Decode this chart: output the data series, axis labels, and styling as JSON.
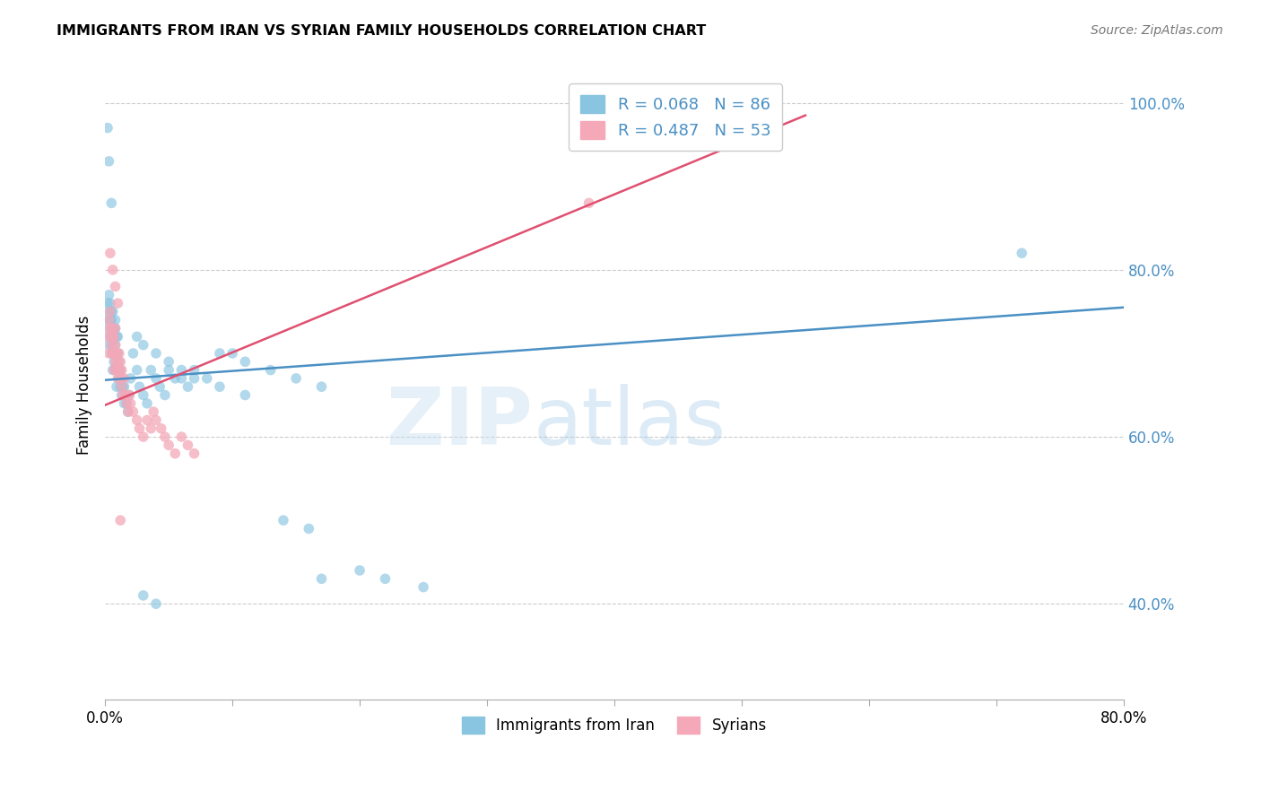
{
  "title": "IMMIGRANTS FROM IRAN VS SYRIAN FAMILY HOUSEHOLDS CORRELATION CHART",
  "source": "Source: ZipAtlas.com",
  "ylabel": "Family Households",
  "xlim": [
    0.0,
    0.8
  ],
  "ylim": [
    0.285,
    1.04
  ],
  "x_ticks": [
    0.0,
    0.1,
    0.2,
    0.3,
    0.4,
    0.5,
    0.6,
    0.7,
    0.8
  ],
  "x_tick_labels": [
    "0.0%",
    "",
    "",
    "",
    "",
    "",
    "",
    "",
    "80.0%"
  ],
  "y_ticks_right": [
    0.4,
    0.6,
    0.8,
    1.0
  ],
  "y_tick_labels_right": [
    "40.0%",
    "60.0%",
    "80.0%",
    "100.0%"
  ],
  "watermark_zip": "ZIP",
  "watermark_atlas": "atlas",
  "legend_iran_r": "R = 0.068",
  "legend_iran_n": "N = 86",
  "legend_syria_r": "R = 0.487",
  "legend_syria_n": "N = 53",
  "blue_color": "#89c4e1",
  "pink_color": "#f4a8b8",
  "line_blue": "#4a90c4",
  "line_pink": "#e05070",
  "legend_label_iran": "Immigrants from Iran",
  "legend_label_syria": "Syrians",
  "blue_scatter_x": [
    0.002,
    0.002,
    0.003,
    0.003,
    0.003,
    0.003,
    0.004,
    0.004,
    0.004,
    0.005,
    0.005,
    0.005,
    0.005,
    0.006,
    0.006,
    0.006,
    0.006,
    0.007,
    0.007,
    0.007,
    0.007,
    0.008,
    0.008,
    0.008,
    0.008,
    0.009,
    0.009,
    0.009,
    0.01,
    0.01,
    0.01,
    0.011,
    0.011,
    0.012,
    0.012,
    0.013,
    0.013,
    0.014,
    0.015,
    0.015,
    0.016,
    0.017,
    0.018,
    0.019,
    0.02,
    0.022,
    0.025,
    0.027,
    0.03,
    0.033,
    0.036,
    0.04,
    0.043,
    0.047,
    0.05,
    0.055,
    0.06,
    0.065,
    0.07,
    0.08,
    0.09,
    0.1,
    0.11,
    0.13,
    0.15,
    0.17,
    0.025,
    0.03,
    0.04,
    0.05,
    0.06,
    0.07,
    0.09,
    0.11,
    0.14,
    0.16,
    0.17,
    0.2,
    0.22,
    0.25,
    0.03,
    0.04,
    0.72,
    0.002,
    0.003,
    0.005
  ],
  "blue_scatter_y": [
    0.74,
    0.76,
    0.73,
    0.75,
    0.77,
    0.71,
    0.72,
    0.74,
    0.76,
    0.7,
    0.72,
    0.74,
    0.75,
    0.71,
    0.73,
    0.75,
    0.68,
    0.7,
    0.72,
    0.73,
    0.69,
    0.71,
    0.73,
    0.74,
    0.68,
    0.7,
    0.72,
    0.66,
    0.68,
    0.7,
    0.72,
    0.67,
    0.69,
    0.66,
    0.68,
    0.65,
    0.67,
    0.66,
    0.64,
    0.66,
    0.65,
    0.64,
    0.63,
    0.65,
    0.67,
    0.7,
    0.68,
    0.66,
    0.65,
    0.64,
    0.68,
    0.67,
    0.66,
    0.65,
    0.68,
    0.67,
    0.67,
    0.66,
    0.68,
    0.67,
    0.7,
    0.7,
    0.69,
    0.68,
    0.67,
    0.66,
    0.72,
    0.71,
    0.7,
    0.69,
    0.68,
    0.67,
    0.66,
    0.65,
    0.5,
    0.49,
    0.43,
    0.44,
    0.43,
    0.42,
    0.41,
    0.4,
    0.82,
    0.97,
    0.93,
    0.88
  ],
  "pink_scatter_x": [
    0.002,
    0.003,
    0.003,
    0.004,
    0.004,
    0.005,
    0.005,
    0.006,
    0.006,
    0.007,
    0.007,
    0.007,
    0.008,
    0.008,
    0.008,
    0.009,
    0.009,
    0.01,
    0.01,
    0.011,
    0.011,
    0.012,
    0.012,
    0.013,
    0.013,
    0.014,
    0.015,
    0.016,
    0.017,
    0.018,
    0.019,
    0.02,
    0.022,
    0.025,
    0.027,
    0.03,
    0.033,
    0.036,
    0.038,
    0.04,
    0.044,
    0.047,
    0.05,
    0.055,
    0.06,
    0.065,
    0.07,
    0.38,
    0.004,
    0.006,
    0.008,
    0.01,
    0.012
  ],
  "pink_scatter_y": [
    0.72,
    0.74,
    0.7,
    0.73,
    0.75,
    0.71,
    0.73,
    0.7,
    0.72,
    0.68,
    0.7,
    0.72,
    0.69,
    0.71,
    0.73,
    0.68,
    0.7,
    0.67,
    0.69,
    0.68,
    0.7,
    0.67,
    0.69,
    0.66,
    0.68,
    0.65,
    0.67,
    0.65,
    0.64,
    0.63,
    0.65,
    0.64,
    0.63,
    0.62,
    0.61,
    0.6,
    0.62,
    0.61,
    0.63,
    0.62,
    0.61,
    0.6,
    0.59,
    0.58,
    0.6,
    0.59,
    0.58,
    0.88,
    0.82,
    0.8,
    0.78,
    0.76,
    0.5
  ],
  "blue_line_x": [
    0.0,
    0.8
  ],
  "blue_line_y": [
    0.668,
    0.755
  ],
  "pink_line_x": [
    0.0,
    0.55
  ],
  "pink_line_y": [
    0.638,
    0.985
  ]
}
